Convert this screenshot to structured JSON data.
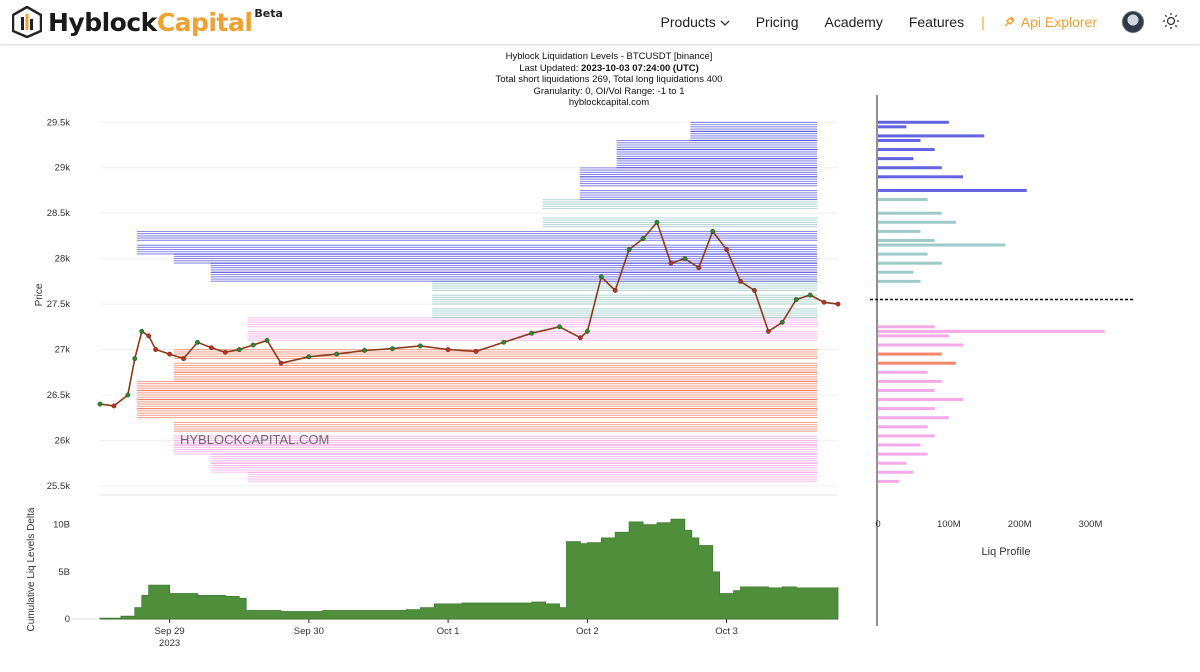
{
  "nav": {
    "brand_primary": "Hyblock",
    "brand_secondary": "Capital",
    "brand_badge": "Beta",
    "items": [
      {
        "label": "Products"
      },
      {
        "label": "Pricing"
      },
      {
        "label": "Academy"
      },
      {
        "label": "Features"
      }
    ],
    "api_label": "Api Explorer",
    "separator": "|",
    "logo_icon": "hyblock-logo-icon",
    "avatar_icon": "avatar-icon",
    "theme_icon": "sun-icon"
  },
  "header": {
    "line1": "Hyblock Liquidation Levels - BTCUSDT [binance]",
    "line2_prefix": "Last Updated: ",
    "line2_value": "2023-10-03 07:24:00 (UTC)",
    "line3": "Total short liquidations 269, Total long liquidations 400",
    "line4": "Granularity: 0, OI/Vol Range: -1 to 1",
    "line5": "hyblockcapital.com"
  },
  "colors": {
    "short_liq": "#2f2fd8",
    "short_liq_light": "#7fb8b8",
    "long_liq": "#f0603c",
    "long_liq_light": "#f08ce0",
    "price_up": "#2a8a2a",
    "price_down": "#c03020",
    "delta_fill": "#4f8f3c",
    "accent": "#f0a030"
  },
  "chart_data": [
    {
      "type": "line",
      "title": "",
      "ylabel": "Price",
      "watermark": "HYBLOCKCAPITAL.COM",
      "ylim": [
        25400,
        29800
      ],
      "y_ticks": [
        25500,
        26000,
        26500,
        27000,
        27500,
        28000,
        28500,
        29000,
        29500
      ],
      "y_tick_labels": [
        "25.5k",
        "26k",
        "26.5k",
        "27k",
        "27.5k",
        "28k",
        "28.5k",
        "29k",
        "29.5k"
      ],
      "x_ticks": [
        1.5,
        2.5,
        3.5,
        4.5,
        5.5
      ],
      "x_tick_labels": [
        "Sep 29",
        "Sep 30",
        "Oct 1",
        "Oct 2",
        "Oct 3"
      ],
      "x_year_label": "2023",
      "xlim": [
        1.0,
        6.3
      ],
      "current_price": 27550,
      "price_series": {
        "name": "BTCUSDT",
        "x": [
          1.0,
          1.1,
          1.2,
          1.25,
          1.3,
          1.35,
          1.4,
          1.5,
          1.6,
          1.7,
          1.8,
          1.9,
          2.0,
          2.1,
          2.2,
          2.3,
          2.5,
          2.7,
          2.9,
          3.1,
          3.3,
          3.5,
          3.7,
          3.9,
          4.1,
          4.3,
          4.45,
          4.5,
          4.6,
          4.7,
          4.8,
          4.9,
          5.0,
          5.1,
          5.2,
          5.3,
          5.4,
          5.5,
          5.6,
          5.7,
          5.8,
          5.9,
          6.0,
          6.1,
          6.2,
          6.3
        ],
        "y": [
          26400,
          26380,
          26500,
          26900,
          27200,
          27150,
          27000,
          26950,
          26900,
          27080,
          27020,
          26970,
          27000,
          27050,
          27100,
          26850,
          26920,
          26950,
          26990,
          27010,
          27040,
          27000,
          26980,
          27080,
          27180,
          27250,
          27130,
          27200,
          27800,
          27650,
          28100,
          28220,
          28400,
          27950,
          28000,
          27900,
          28300,
          28100,
          27750,
          27650,
          27200,
          27300,
          27550,
          27600,
          27520,
          27500
        ]
      },
      "short_liq_levels": [
        {
          "price": 27400,
          "width": 0.55
        },
        {
          "price": 27550,
          "width": 0.55
        },
        {
          "price": 27700,
          "width": 0.55
        },
        {
          "price": 27800,
          "width": 0.85
        },
        {
          "price": 27900,
          "width": 0.85
        },
        {
          "price": 28000,
          "width": 0.9
        },
        {
          "price": 28100,
          "width": 0.95
        },
        {
          "price": 28250,
          "width": 0.95
        },
        {
          "price": 28400,
          "width": 0.4
        },
        {
          "price": 28600,
          "width": 0.4
        },
        {
          "price": 28700,
          "width": 0.35
        },
        {
          "price": 28850,
          "width": 0.35
        },
        {
          "price": 28950,
          "width": 0.35
        },
        {
          "price": 29050,
          "width": 0.3
        },
        {
          "price": 29150,
          "width": 0.3
        },
        {
          "price": 29250,
          "width": 0.3
        },
        {
          "price": 29350,
          "width": 0.2
        },
        {
          "price": 29450,
          "width": 0.2
        }
      ],
      "long_liq_levels": [
        {
          "price": 27300,
          "width": 0.8
        },
        {
          "price": 27150,
          "width": 0.8
        },
        {
          "price": 26950,
          "width": 0.9
        },
        {
          "price": 26800,
          "width": 0.9
        },
        {
          "price": 26700,
          "width": 0.9
        },
        {
          "price": 26600,
          "width": 0.95
        },
        {
          "price": 26500,
          "width": 0.95
        },
        {
          "price": 26400,
          "width": 0.95
        },
        {
          "price": 26300,
          "width": 0.95
        },
        {
          "price": 26150,
          "width": 0.9
        },
        {
          "price": 26000,
          "width": 0.9
        },
        {
          "price": 25900,
          "width": 0.9
        },
        {
          "price": 25800,
          "width": 0.85
        },
        {
          "price": 25700,
          "width": 0.85
        },
        {
          "price": 25600,
          "width": 0.8
        }
      ]
    },
    {
      "type": "area",
      "title": "",
      "ylabel": "Cumulative Liq Levels Delta",
      "ylim": [
        0,
        10500000000
      ],
      "y_ticks": [
        0,
        5000000000,
        10000000000
      ],
      "y_tick_labels": [
        "0",
        "5B",
        "10B"
      ],
      "series": [
        {
          "x": [
            1.0,
            1.15,
            1.25,
            1.3,
            1.35,
            1.5,
            1.7,
            1.9,
            2.0,
            2.05,
            2.3,
            2.6,
            2.9,
            3.2,
            3.3,
            3.4,
            3.6,
            3.9,
            4.1,
            4.2,
            4.3,
            4.35,
            4.45,
            4.5,
            4.6,
            4.7,
            4.8,
            4.9,
            5.0,
            5.1,
            5.2,
            5.25,
            5.3,
            5.4,
            5.45,
            5.55,
            5.6,
            5.8,
            5.9,
            6.0,
            6.2,
            6.3
          ],
          "y": [
            100000000,
            300000000,
            1200000000,
            2500000000,
            3600000000,
            2700000000,
            2500000000,
            2400000000,
            2200000000,
            900000000,
            800000000,
            900000000,
            900000000,
            1000000000,
            1200000000,
            1600000000,
            1700000000,
            1700000000,
            1800000000,
            1600000000,
            1200000000,
            8200000000,
            8000000000,
            8100000000,
            8600000000,
            9200000000,
            10300000000,
            10000000000,
            10200000000,
            10600000000,
            9400000000,
            8600000000,
            7800000000,
            5000000000,
            2700000000,
            3000000000,
            3400000000,
            3300000000,
            3400000000,
            3300000000,
            3300000000,
            3400000000
          ]
        }
      ]
    },
    {
      "type": "bar",
      "title": "",
      "xlabel": "Liq Profile",
      "x_ticks": [
        0,
        100000000,
        200000000,
        300000000
      ],
      "x_tick_labels": [
        "0",
        "100M",
        "200M",
        "300M"
      ],
      "xlim": [
        0,
        360000000
      ],
      "bars": [
        {
          "price": 29500,
          "value": 100000000,
          "side": "short"
        },
        {
          "price": 29450,
          "value": 40000000,
          "side": "short"
        },
        {
          "price": 29350,
          "value": 150000000,
          "side": "short"
        },
        {
          "price": 29300,
          "value": 60000000,
          "side": "short"
        },
        {
          "price": 29200,
          "value": 80000000,
          "side": "short"
        },
        {
          "price": 29100,
          "value": 50000000,
          "side": "short"
        },
        {
          "price": 29000,
          "value": 90000000,
          "side": "short"
        },
        {
          "price": 28900,
          "value": 120000000,
          "side": "short"
        },
        {
          "price": 28750,
          "value": 210000000,
          "side": "short"
        },
        {
          "price": 28650,
          "value": 70000000,
          "side": "short"
        },
        {
          "price": 28500,
          "value": 90000000,
          "side": "short"
        },
        {
          "price": 28400,
          "value": 110000000,
          "side": "short"
        },
        {
          "price": 28300,
          "value": 60000000,
          "side": "short"
        },
        {
          "price": 28200,
          "value": 80000000,
          "side": "short"
        },
        {
          "price": 28150,
          "value": 180000000,
          "side": "short"
        },
        {
          "price": 28050,
          "value": 70000000,
          "side": "short"
        },
        {
          "price": 27950,
          "value": 90000000,
          "side": "short"
        },
        {
          "price": 27850,
          "value": 50000000,
          "side": "short"
        },
        {
          "price": 27750,
          "value": 60000000,
          "side": "short"
        },
        {
          "price": 27250,
          "value": 80000000,
          "side": "long"
        },
        {
          "price": 27200,
          "value": 320000000,
          "side": "long"
        },
        {
          "price": 27150,
          "value": 100000000,
          "side": "long"
        },
        {
          "price": 27050,
          "value": 120000000,
          "side": "long"
        },
        {
          "price": 26950,
          "value": 90000000,
          "side": "long"
        },
        {
          "price": 26850,
          "value": 110000000,
          "side": "long"
        },
        {
          "price": 26750,
          "value": 70000000,
          "side": "long"
        },
        {
          "price": 26650,
          "value": 90000000,
          "side": "long"
        },
        {
          "price": 26550,
          "value": 80000000,
          "side": "long"
        },
        {
          "price": 26450,
          "value": 120000000,
          "side": "long"
        },
        {
          "price": 26350,
          "value": 80000000,
          "side": "long"
        },
        {
          "price": 26250,
          "value": 100000000,
          "side": "long"
        },
        {
          "price": 26150,
          "value": 70000000,
          "side": "long"
        },
        {
          "price": 26050,
          "value": 80000000,
          "side": "long"
        },
        {
          "price": 25950,
          "value": 60000000,
          "side": "long"
        },
        {
          "price": 25850,
          "value": 70000000,
          "side": "long"
        },
        {
          "price": 25750,
          "value": 40000000,
          "side": "long"
        },
        {
          "price": 25650,
          "value": 50000000,
          "side": "long"
        },
        {
          "price": 25550,
          "value": 30000000,
          "side": "long"
        }
      ]
    }
  ]
}
